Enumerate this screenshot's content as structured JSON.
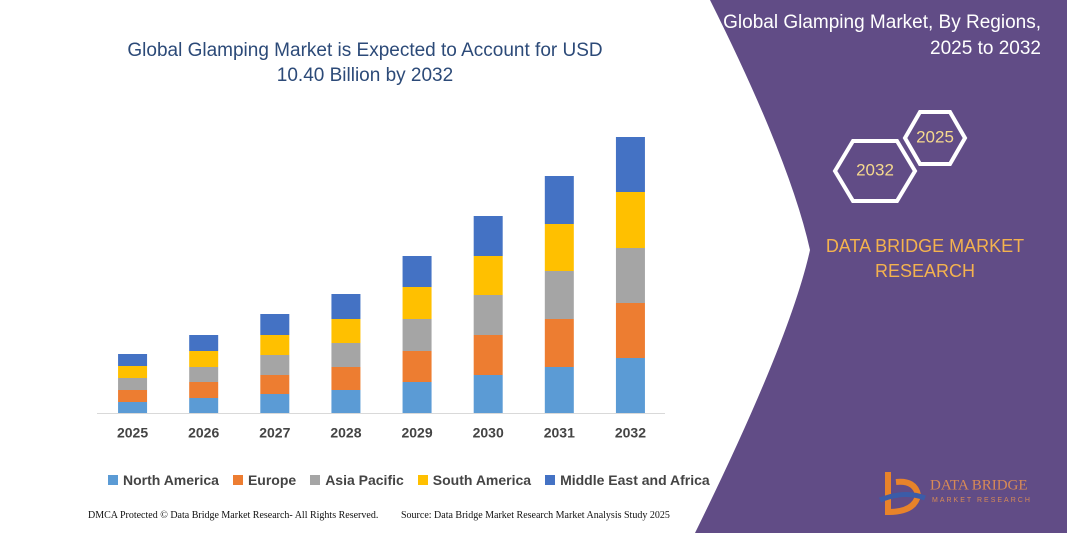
{
  "chart_data": {
    "type": "bar",
    "stacked": true,
    "title": "Global Glamping Market is Expected to Account for USD 10.40 Billion by 2032",
    "categories": [
      "2025",
      "2026",
      "2027",
      "2028",
      "2029",
      "2030",
      "2031",
      "2032"
    ],
    "series": [
      {
        "name": "North America",
        "color": "#5b9bd5",
        "values": [
          11,
          15,
          19,
          23,
          31,
          38,
          46,
          55
        ]
      },
      {
        "name": "Europe",
        "color": "#ed7d31",
        "values": [
          12,
          16,
          19,
          23,
          31,
          40,
          48,
          55
        ]
      },
      {
        "name": "Asia Pacific",
        "color": "#a5a5a5",
        "values": [
          12,
          15,
          20,
          24,
          32,
          40,
          48,
          55
        ]
      },
      {
        "name": "South America",
        "color": "#ffc000",
        "values": [
          12,
          16,
          20,
          24,
          32,
          39,
          47,
          56
        ]
      },
      {
        "name": "Middle East and Africa",
        "color": "#4472c4",
        "values": [
          12,
          16,
          21,
          25,
          31,
          40,
          48,
          55
        ]
      }
    ],
    "ylim": [
      0,
      280
    ]
  },
  "panel": {
    "title": "Global Glamping Market, By Regions, 2025 to 2032",
    "hex_a": "2025",
    "hex_b": "2032",
    "brand": "DATA BRIDGE MARKET RESEARCH"
  },
  "logo": {
    "name": "DATA BRIDGE",
    "tagline": "MARKET RESEARCH"
  },
  "footer": {
    "left": "DMCA Protected © Data Bridge Market Research- All Rights Reserved.",
    "right": "Source: Data Bridge Market Research Market Analysis Study 2025"
  }
}
